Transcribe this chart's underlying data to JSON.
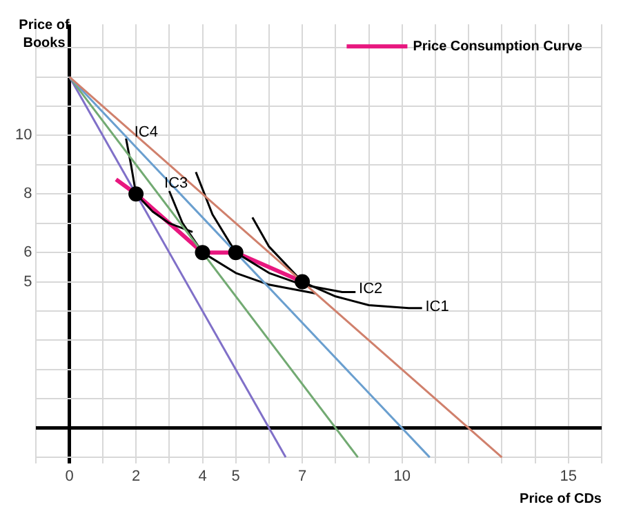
{
  "chart_data": {
    "type": "line",
    "xlabel": "Price of CDs",
    "ylabel": "Price of Books",
    "xlim": [
      -1,
      16
    ],
    "ylim": [
      -1.2,
      13.8
    ],
    "xticks": [
      {
        "value": -1,
        "label": null
      },
      0,
      {
        "value": 1,
        "label": null
      },
      2,
      {
        "value": 3,
        "label": null
      },
      4,
      5,
      {
        "value": 6,
        "label": null
      },
      7,
      {
        "value": 8,
        "label": null
      },
      {
        "value": 9,
        "label": null
      },
      10,
      {
        "value": 11,
        "label": null
      },
      {
        "value": 12,
        "label": null
      },
      {
        "value": 13,
        "label": null
      },
      {
        "value": 14,
        "label": null
      },
      15,
      {
        "value": 16,
        "label": null
      }
    ],
    "yticks": [
      {
        "value": -1,
        "label": null
      },
      {
        "value": 0,
        "label": null
      },
      {
        "value": 1,
        "label": null
      },
      {
        "value": 2,
        "label": null
      },
      {
        "value": 3,
        "label": null
      },
      {
        "value": 4,
        "label": null
      },
      5,
      6,
      {
        "value": 7,
        "label": null
      },
      8,
      {
        "value": 9,
        "label": null
      },
      10,
      {
        "value": 11,
        "label": null
      },
      {
        "value": 12,
        "label": null
      },
      {
        "value": 13,
        "label": null
      }
    ],
    "grid": true,
    "legend": "top right",
    "series": [
      {
        "type": "line",
        "color": "#d0806c",
        "marker": "none",
        "x": [
          0,
          13
        ],
        "values": [
          12,
          -1
        ]
      },
      {
        "type": "line",
        "color": "#6a9fcf",
        "marker": "none",
        "x": [
          0,
          10.83
        ],
        "values": [
          12,
          -1
        ]
      },
      {
        "type": "line",
        "color": "#72aa72",
        "marker": "none",
        "x": [
          0,
          8.67
        ],
        "values": [
          12,
          -1
        ]
      },
      {
        "type": "line",
        "color": "#8070c8",
        "marker": "none",
        "x": [
          0,
          6.5
        ],
        "values": [
          12,
          -1
        ]
      },
      {
        "type": "line",
        "color": "#000000",
        "marker": "none",
        "x": [
          1.7,
          1.85,
          2,
          2.5,
          3,
          3.7
        ],
        "values": [
          9.9,
          9,
          8,
          7.4,
          7,
          6.7
        ]
      },
      {
        "type": "line",
        "color": "#000000",
        "marker": "none",
        "x": [
          3,
          3.4,
          4,
          5,
          6,
          7.4
        ],
        "values": [
          8.1,
          7,
          6,
          5.3,
          4.9,
          4.6
        ]
      },
      {
        "type": "line",
        "color": "#000000",
        "marker": "none",
        "x": [
          3.8,
          4.3,
          5,
          6,
          7,
          8.2,
          8.6
        ],
        "values": [
          8.75,
          7.3,
          6,
          5.3,
          4.9,
          4.65,
          4.65
        ]
      },
      {
        "type": "line",
        "color": "#000000",
        "marker": "none",
        "x": [
          5.5,
          6,
          7,
          8,
          9,
          10.2,
          10.6
        ],
        "values": [
          7.2,
          6.2,
          5,
          4.5,
          4.2,
          4.1,
          4.1
        ]
      },
      {
        "type": "line",
        "name": "Price Consumption Curve",
        "color": "#e8177f",
        "marker": "none",
        "x": [
          1.4,
          2,
          4,
          5,
          7
        ],
        "values": [
          8.5,
          8,
          6,
          6,
          5
        ]
      },
      {
        "type": "scatter",
        "color": "#000000",
        "marker": "circle",
        "x": [
          2,
          4,
          5,
          7
        ],
        "values": [
          8,
          6,
          6,
          5
        ]
      }
    ],
    "annotations": [
      {
        "text": "IC4",
        "x": 1.95,
        "y": 10.1
      },
      {
        "text": "IC3",
        "x": 2.85,
        "y": 8.35
      },
      {
        "text": "IC2",
        "x": 8.7,
        "y": 4.75
      },
      {
        "text": "IC1",
        "x": 10.7,
        "y": 4.15
      }
    ]
  }
}
